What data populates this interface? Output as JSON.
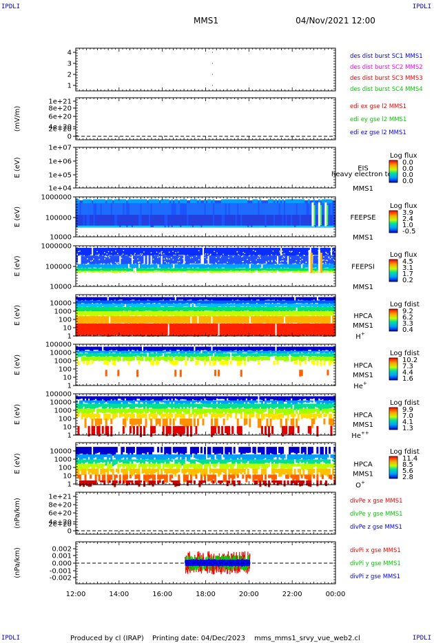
{
  "corner_label": "IPDLI",
  "header": {
    "mission": "MMS1",
    "datetime": "04/Nov/2021 12:00"
  },
  "footer": {
    "produced_by": "Produced by cl (IRAP)",
    "printing_date": "Printing date: 04/Dec/2023",
    "script_name": "mms_mms1_srvy_vue_web2.cl"
  },
  "colors": {
    "blue": "#0000ff",
    "magenta": "#ff00ff",
    "red": "#ff0000",
    "green": "#00cc00"
  },
  "chart_data": {
    "type": "heatmap",
    "x_tick_labels": [
      "12:00",
      "14:00",
      "16:00",
      "18:00",
      "20:00",
      "22:00",
      "00:00"
    ],
    "x_range_hours": [
      12,
      24
    ],
    "panels": [
      {
        "id": "sc_flags",
        "type": "scatter",
        "ylabel": "",
        "y_tick_labels": [
          "4",
          "3",
          "2",
          "1"
        ],
        "legend": [
          {
            "text": "des dist burst SC1 MMS1",
            "color": "#0000ff"
          },
          {
            "text": "des dist burst SC2 MMS2",
            "color": "#ff00ff"
          },
          {
            "text": "des dist burst SC3 MMS3",
            "color": "#ff0000"
          },
          {
            "text": "des dist burst SC4 MMS4",
            "color": "#00cc00"
          }
        ],
        "points": [
          {
            "x_hour": 18.3,
            "y": 4
          },
          {
            "x_hour": 18.3,
            "y": 3
          },
          {
            "x_hour": 18.3,
            "y": 2
          },
          {
            "x_hour": 18.3,
            "y": 1
          }
        ]
      },
      {
        "id": "edi",
        "type": "line",
        "ylabel": "(mV/m)",
        "y_tick_labels": [
          "1e+21",
          "8e+20",
          "6e+20",
          "4e+20",
          "2e+20",
          "0"
        ],
        "legend": [
          {
            "text": "edi ex gse l2 MMS1",
            "color": "#ff0000"
          },
          {
            "text": "edi ey gse l2 MMS1",
            "color": "#00cc00"
          },
          {
            "text": "edi ez gse l2 MMS1",
            "color": "#0000ff"
          }
        ],
        "zero_line": true
      },
      {
        "id": "eis",
        "type": "heatmap",
        "ylabel": "E (eV)",
        "y_tick_labels": [
          "1e+07",
          "1e+06",
          "1e+05",
          "1e+04"
        ],
        "labels": [
          "EIS",
          "MMS1"
        ],
        "overlay_text": "heavy electron to",
        "colorbar": {
          "title": "Log flux",
          "ticks": [
            "0.0",
            "0.0",
            "0.0",
            "0.0"
          ]
        }
      },
      {
        "id": "feepse",
        "type": "heatmap",
        "ylabel": "E (eV)",
        "y_tick_labels": [
          "1000000",
          "100000",
          "10000"
        ],
        "labels": [
          "FEEPSE",
          "MMS1"
        ],
        "colorbar": {
          "title": "Log flux",
          "ticks": [
            "3.9",
            "2.4",
            "1.0",
            "-0.5"
          ]
        }
      },
      {
        "id": "feepsi",
        "type": "heatmap",
        "ylabel": "E (eV)",
        "y_tick_labels": [
          "1000000",
          "100000",
          "10000"
        ],
        "labels": [
          "FEEPSI",
          "MMS1"
        ],
        "colorbar": {
          "title": "Log flux",
          "ticks": [
            "4.5",
            "3.1",
            "1.7",
            "0.2"
          ]
        }
      },
      {
        "id": "hpca_h",
        "type": "heatmap",
        "ylabel": "E (eV)",
        "y_tick_labels": [
          "10000",
          "1000",
          "100",
          "10",
          "1"
        ],
        "labels": [
          "HPCA",
          "MMS1"
        ],
        "species": "H",
        "species_sup": "+",
        "colorbar": {
          "title": "Log fdist",
          "ticks": [
            "9.2",
            "6.2",
            "3.3",
            "0.4"
          ]
        }
      },
      {
        "id": "hpca_he",
        "type": "heatmap",
        "ylabel": "E (eV)",
        "y_tick_labels": [
          "100000",
          "10000",
          "1000",
          "100",
          "10",
          "1"
        ],
        "labels": [
          "HPCA",
          "MMS1"
        ],
        "species": "He",
        "species_sup": "+",
        "colorbar": {
          "title": "Log fdist",
          "ticks": [
            "10.2",
            "7.3",
            "4.4",
            "1.6"
          ]
        }
      },
      {
        "id": "hpca_hepp",
        "type": "heatmap",
        "ylabel": "E (eV)",
        "y_tick_labels": [
          "100000",
          "10000",
          "1000",
          "100",
          "10",
          "1"
        ],
        "labels": [
          "HPCA",
          "MMS1"
        ],
        "species": "He",
        "species_sup": "++",
        "colorbar": {
          "title": "Log fdist",
          "ticks": [
            "9.9",
            "7.0",
            "4.1",
            "1.3"
          ]
        }
      },
      {
        "id": "hpca_o",
        "type": "heatmap",
        "ylabel": "E (eV)",
        "y_tick_labels": [
          "10000",
          "1000",
          "100",
          "10",
          "1"
        ],
        "labels": [
          "HPCA",
          "MMS1"
        ],
        "species": "O",
        "species_sup": "+",
        "colorbar": {
          "title": "Log fdist",
          "ticks": [
            "11.4",
            "8.5",
            "5.6",
            "2.8"
          ]
        }
      },
      {
        "id": "divpe",
        "type": "line",
        "ylabel": "(nPa/km)",
        "y_tick_labels": [
          "1e+21",
          "8e+20",
          "6e+20",
          "4e+20",
          "2e+20",
          "0"
        ],
        "legend": [
          {
            "text": "divPe x gse MMS1",
            "color": "#ff0000"
          },
          {
            "text": "divPe y gse MMS1",
            "color": "#00cc00"
          },
          {
            "text": "divPe z gse MMS1",
            "color": "#0000ff"
          }
        ],
        "zero_line": true
      },
      {
        "id": "divpi",
        "type": "line",
        "ylabel": "(nPa/km)",
        "y_tick_labels": [
          "0.002",
          "0.001",
          "0.000",
          "-0.001",
          "-0.002"
        ],
        "y_range": [
          -0.0027,
          0.0027
        ],
        "legend": [
          {
            "text": "divPi x gse MMS1",
            "color": "#ff0000"
          },
          {
            "text": "divPi y gse MMS1",
            "color": "#00cc00"
          },
          {
            "text": "divPi z gse MMS1",
            "color": "#0000ff"
          }
        ],
        "zero_line": true,
        "data_interval_hours": [
          17.05,
          20.05
        ],
        "series": [
          {
            "name": "divPi x gse MMS1",
            "amplitude": 0.0015
          },
          {
            "name": "divPi y gse MMS1",
            "amplitude": 0.001
          },
          {
            "name": "divPi z gse MMS1",
            "amplitude": 0.0005
          }
        ]
      }
    ]
  }
}
